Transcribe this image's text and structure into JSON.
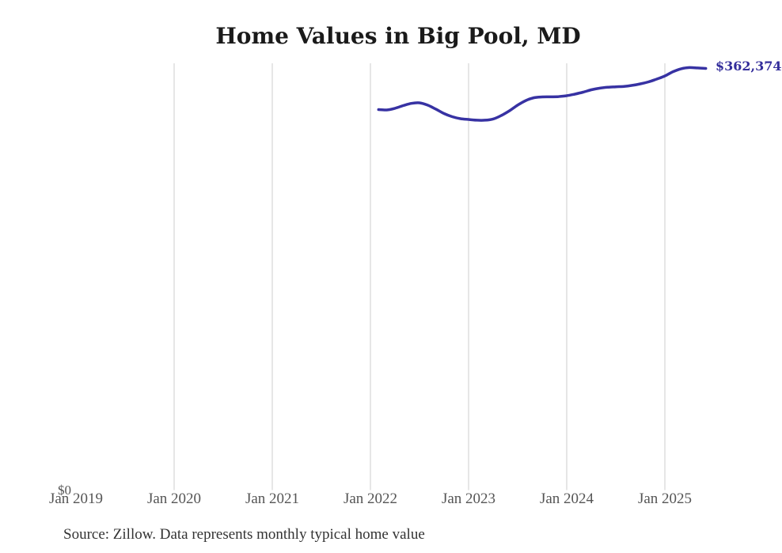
{
  "title": "Home Values in Big Pool, MD",
  "source_note": "Source: Zillow. Data represents monthly typical home value",
  "end_label": "$362,374",
  "y_axis": {
    "zero_label": "$0"
  },
  "x_axis": {
    "ticks": [
      {
        "label": "Jan 2019",
        "gridline": false
      },
      {
        "label": "Jan 2020",
        "gridline": true
      },
      {
        "label": "Jan 2021",
        "gridline": true
      },
      {
        "label": "Jan 2022",
        "gridline": true
      },
      {
        "label": "Jan 2023",
        "gridline": true
      },
      {
        "label": "Jan 2024",
        "gridline": true
      },
      {
        "label": "Jan 2025",
        "gridline": true
      }
    ]
  },
  "colors": {
    "line": "#3732a3",
    "end_label": "#332d9b",
    "grid": "#cccccc",
    "axis_text": "#555555",
    "title_text": "#1a1a1a",
    "source_text": "#333333",
    "background": "#ffffff"
  },
  "chart_data": {
    "type": "line",
    "title": "Home Values in Big Pool, MD",
    "xlabel": "",
    "ylabel": "",
    "ylim": [
      0,
      372000
    ],
    "grid": "vertical",
    "legend": "none",
    "x_tick_labels": [
      "Jan 2019",
      "Jan 2020",
      "Jan 2021",
      "Jan 2022",
      "Jan 2023",
      "Jan 2024",
      "Jan 2025"
    ],
    "x": [
      "2022-02",
      "2022-03",
      "2022-04",
      "2022-05",
      "2022-06",
      "2022-07",
      "2022-08",
      "2022-09",
      "2022-10",
      "2022-11",
      "2022-12",
      "2023-01",
      "2023-02",
      "2023-03",
      "2023-04",
      "2023-05",
      "2023-06",
      "2023-07",
      "2023-08",
      "2023-09",
      "2023-10",
      "2023-11",
      "2023-12",
      "2024-01",
      "2024-02",
      "2024-03",
      "2024-04",
      "2024-05",
      "2024-06",
      "2024-07",
      "2024-08",
      "2024-09",
      "2024-10",
      "2024-11",
      "2024-12",
      "2025-01",
      "2025-02",
      "2025-03",
      "2025-04",
      "2025-05",
      "2025-06"
    ],
    "series": [
      {
        "name": "Monthly typical home value",
        "values": [
          327000,
          326700,
          328100,
          330400,
          332300,
          332800,
          330800,
          327400,
          323600,
          320900,
          319200,
          318500,
          317900,
          317900,
          318900,
          321900,
          326000,
          330800,
          334800,
          337200,
          337900,
          338000,
          338200,
          338900,
          340300,
          342000,
          344000,
          345400,
          346200,
          346600,
          346900,
          347800,
          349100,
          350800,
          353200,
          355900,
          359600,
          362100,
          363100,
          362800,
          362374
        ]
      }
    ],
    "end_annotation": {
      "text": "$362,374",
      "value": 362374,
      "x": "2025-06"
    }
  }
}
